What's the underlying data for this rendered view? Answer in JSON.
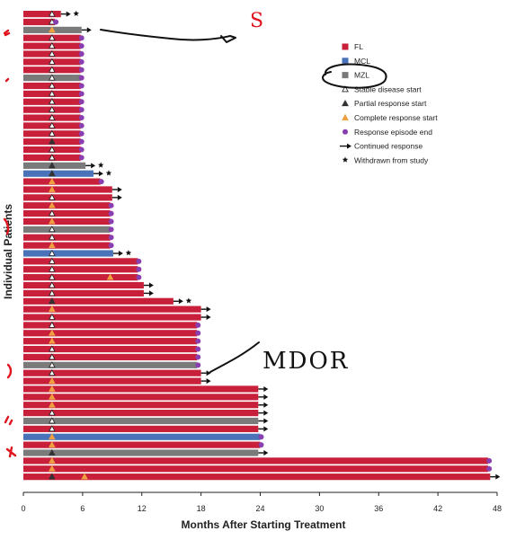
{
  "chart_data": {
    "type": "bar",
    "orientation": "horizontal",
    "xlabel": "Months After Starting Treatment",
    "ylabel": "Individual Patients",
    "xlim": [
      0,
      48
    ],
    "xticks": [
      "0",
      "6",
      "12",
      "18",
      "24",
      "30",
      "36",
      "42",
      "48"
    ],
    "grid": false,
    "legend_position": "right",
    "legend": [
      {
        "key": "FL",
        "label": "FL",
        "kind": "swatch",
        "color": "#c8203a"
      },
      {
        "key": "MCL",
        "label": "MCL",
        "kind": "swatch",
        "color": "#4a72b8"
      },
      {
        "key": "MZL",
        "label": "MZL",
        "kind": "swatch",
        "color": "#7a7a7a"
      },
      {
        "key": "SD",
        "label": "Stable disease start",
        "kind": "open-triangle",
        "color": "#222222"
      },
      {
        "key": "PR",
        "label": "Partial response start",
        "kind": "triangle",
        "color": "#333333"
      },
      {
        "key": "CR",
        "label": "Complete response start",
        "kind": "triangle",
        "color": "#f0a040"
      },
      {
        "key": "END",
        "label": "Response episode end",
        "kind": "circle",
        "color": "#8a3fb0"
      },
      {
        "key": "ARROW",
        "label": "Continued response",
        "kind": "arrow",
        "color": "#111111"
      },
      {
        "key": "STAR",
        "label": "Withdrawn from study",
        "kind": "star",
        "color": "#111111"
      }
    ],
    "bars": [
      {
        "type": "FL",
        "end": 3.8,
        "marker": "SD",
        "marker_at": 2.9,
        "terminator": "arrow",
        "withdrawn": true
      },
      {
        "type": "FL",
        "end": 3.2,
        "marker": "SD",
        "marker_at": 2.9,
        "terminator": "circle"
      },
      {
        "type": "MZL",
        "end": 5.9,
        "marker": "CR",
        "marker_at": 2.9,
        "terminator": "arrow"
      },
      {
        "type": "FL",
        "end": 5.8,
        "marker": "SD",
        "marker_at": 2.9,
        "terminator": "circle"
      },
      {
        "type": "FL",
        "end": 5.8,
        "marker": "SD",
        "marker_at": 2.9,
        "terminator": "circle"
      },
      {
        "type": "FL",
        "end": 5.8,
        "marker": "SD",
        "marker_at": 2.9,
        "terminator": "circle"
      },
      {
        "type": "FL",
        "end": 5.8,
        "marker": "SD",
        "marker_at": 2.9,
        "terminator": "circle"
      },
      {
        "type": "FL",
        "end": 5.8,
        "marker": "SD",
        "marker_at": 2.9,
        "terminator": "circle"
      },
      {
        "type": "MZL",
        "end": 5.8,
        "marker": "SD",
        "marker_at": 2.9,
        "terminator": "circle"
      },
      {
        "type": "FL",
        "end": 5.8,
        "marker": "SD",
        "marker_at": 2.9,
        "terminator": "circle"
      },
      {
        "type": "FL",
        "end": 5.8,
        "marker": "SD",
        "marker_at": 2.9,
        "terminator": "circle"
      },
      {
        "type": "FL",
        "end": 5.8,
        "marker": "SD",
        "marker_at": 2.9,
        "terminator": "circle"
      },
      {
        "type": "FL",
        "end": 5.8,
        "marker": "SD",
        "marker_at": 2.9,
        "terminator": "circle"
      },
      {
        "type": "FL",
        "end": 5.8,
        "marker": "SD",
        "marker_at": 2.9,
        "terminator": "circle"
      },
      {
        "type": "FL",
        "end": 5.8,
        "marker": "SD",
        "marker_at": 2.9,
        "terminator": "circle"
      },
      {
        "type": "FL",
        "end": 5.8,
        "marker": "SD",
        "marker_at": 2.9,
        "terminator": "circle"
      },
      {
        "type": "FL",
        "end": 5.8,
        "marker": "PR",
        "marker_at": 2.9,
        "terminator": "circle"
      },
      {
        "type": "FL",
        "end": 5.8,
        "marker": "SD",
        "marker_at": 2.9,
        "terminator": "circle"
      },
      {
        "type": "FL",
        "end": 5.8,
        "marker": "SD",
        "marker_at": 2.9,
        "terminator": "circle"
      },
      {
        "type": "MZL",
        "end": 6.3,
        "marker": "PR",
        "marker_at": 2.9,
        "terminator": "arrow",
        "withdrawn": true
      },
      {
        "type": "MCL",
        "end": 7.1,
        "marker": "PR",
        "marker_at": 2.9,
        "terminator": "arrow",
        "withdrawn": true
      },
      {
        "type": "FL",
        "end": 7.8,
        "marker": "CR",
        "marker_at": 2.9,
        "terminator": "circle"
      },
      {
        "type": "FL",
        "end": 9.0,
        "marker": "CR",
        "marker_at": 2.9,
        "terminator": "arrow"
      },
      {
        "type": "FL",
        "end": 9.0,
        "marker": "SD",
        "marker_at": 2.9,
        "terminator": "arrow"
      },
      {
        "type": "FL",
        "end": 8.8,
        "marker": "CR",
        "marker_at": 2.9,
        "terminator": "circle"
      },
      {
        "type": "FL",
        "end": 8.8,
        "marker": "SD",
        "marker_at": 2.9,
        "terminator": "circle"
      },
      {
        "type": "FL",
        "end": 8.8,
        "marker": "CR",
        "marker_at": 2.9,
        "terminator": "circle"
      },
      {
        "type": "MZL",
        "end": 8.8,
        "marker": "SD",
        "marker_at": 2.9,
        "terminator": "circle"
      },
      {
        "type": "FL",
        "end": 8.8,
        "marker": "SD",
        "marker_at": 2.9,
        "terminator": "circle"
      },
      {
        "type": "FL",
        "end": 8.8,
        "marker": "CR",
        "marker_at": 2.9,
        "terminator": "circle"
      },
      {
        "type": "MCL",
        "end": 9.1,
        "marker": "SD",
        "marker_at": 2.9,
        "terminator": "arrow",
        "withdrawn": true
      },
      {
        "type": "FL",
        "end": 11.6,
        "marker": "SD",
        "marker_at": 2.9,
        "terminator": "circle"
      },
      {
        "type": "FL",
        "end": 11.6,
        "marker": "SD",
        "marker_at": 2.9,
        "terminator": "circle"
      },
      {
        "type": "FL",
        "end": 11.6,
        "marker": "SD",
        "marker_at": 2.9,
        "marker2": "CR",
        "marker2_at": 8.8,
        "terminator": "circle"
      },
      {
        "type": "FL",
        "end": 12.2,
        "marker": "SD",
        "marker_at": 2.9,
        "terminator": "arrow"
      },
      {
        "type": "FL",
        "end": 12.2,
        "marker": "SD",
        "marker_at": 2.9,
        "terminator": "arrow"
      },
      {
        "type": "FL",
        "end": 15.2,
        "marker": "PR",
        "marker_at": 2.9,
        "terminator": "arrow",
        "withdrawn": true
      },
      {
        "type": "FL",
        "end": 18.0,
        "marker": "CR",
        "marker_at": 2.9,
        "terminator": "arrow"
      },
      {
        "type": "FL",
        "end": 18.0,
        "marker": "SD",
        "marker_at": 2.9,
        "terminator": "arrow"
      },
      {
        "type": "FL",
        "end": 17.6,
        "marker": "SD",
        "marker_at": 2.9,
        "terminator": "circle"
      },
      {
        "type": "FL",
        "end": 17.6,
        "marker": "CR",
        "marker_at": 2.9,
        "terminator": "circle"
      },
      {
        "type": "FL",
        "end": 17.6,
        "marker": "CR",
        "marker_at": 2.9,
        "terminator": "circle"
      },
      {
        "type": "FL",
        "end": 17.6,
        "marker": "SD",
        "marker_at": 2.9,
        "terminator": "circle"
      },
      {
        "type": "FL",
        "end": 17.6,
        "marker": "SD",
        "marker_at": 2.9,
        "terminator": "circle"
      },
      {
        "type": "MZL",
        "end": 17.6,
        "marker": "SD",
        "marker_at": 2.9,
        "terminator": "circle"
      },
      {
        "type": "FL",
        "end": 18.0,
        "marker": "SD",
        "marker_at": 2.9,
        "terminator": "arrow"
      },
      {
        "type": "FL",
        "end": 18.0,
        "marker": "CR",
        "marker_at": 2.9,
        "terminator": "arrow"
      },
      {
        "type": "FL",
        "end": 23.8,
        "marker": "CR",
        "marker_at": 2.9,
        "terminator": "arrow"
      },
      {
        "type": "FL",
        "end": 23.8,
        "marker": "CR",
        "marker_at": 2.9,
        "terminator": "arrow"
      },
      {
        "type": "FL",
        "end": 23.8,
        "marker": "CR",
        "marker_at": 2.9,
        "terminator": "arrow"
      },
      {
        "type": "FL",
        "end": 23.8,
        "marker": "SD",
        "marker_at": 2.9,
        "terminator": "arrow"
      },
      {
        "type": "MZL",
        "end": 23.8,
        "marker": "SD",
        "marker_at": 2.9,
        "terminator": "arrow"
      },
      {
        "type": "FL",
        "end": 23.8,
        "marker": "SD",
        "marker_at": 2.9,
        "terminator": "arrow"
      },
      {
        "type": "MCL",
        "end": 24.0,
        "marker": "CR",
        "marker_at": 2.9,
        "terminator": "circle"
      },
      {
        "type": "FL",
        "end": 24.0,
        "marker": "CR",
        "marker_at": 2.9,
        "terminator": "circle"
      },
      {
        "type": "MZL",
        "end": 23.8,
        "marker": "PR",
        "marker_at": 2.9,
        "terminator": "arrow"
      },
      {
        "type": "FL",
        "end": 47.1,
        "marker": "CR",
        "marker_at": 2.9,
        "terminator": "circle"
      },
      {
        "type": "FL",
        "end": 47.1,
        "marker": "CR",
        "marker_at": 2.9,
        "terminator": "circle"
      },
      {
        "type": "FL",
        "end": 47.3,
        "marker": "PR",
        "marker_at": 2.9,
        "marker2": "CR",
        "marker2_at": 6.2,
        "terminator": "arrow"
      }
    ],
    "annotations": [
      "MDOR",
      "S"
    ]
  }
}
